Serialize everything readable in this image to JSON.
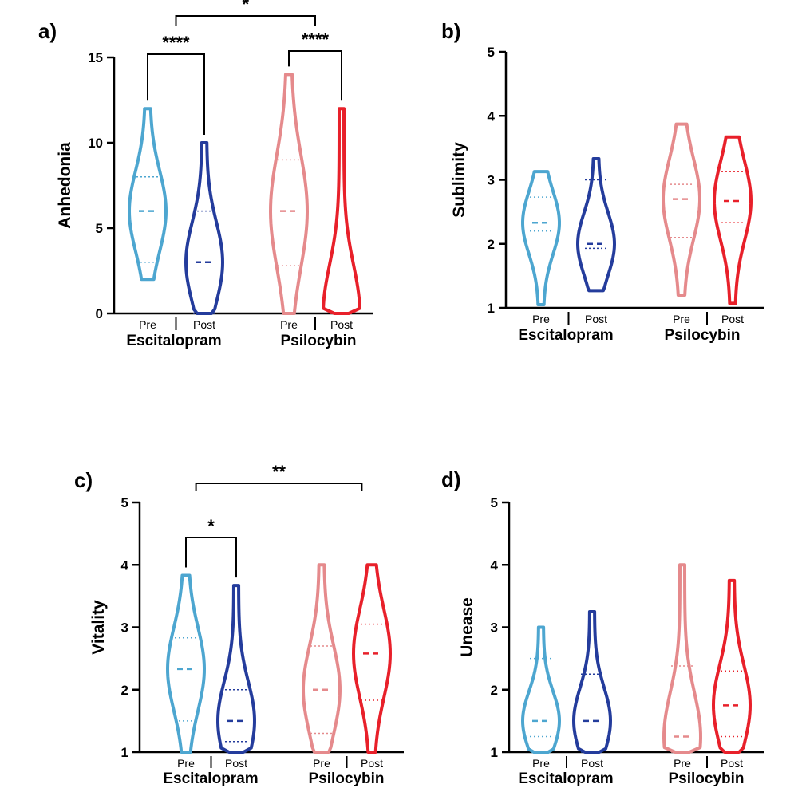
{
  "colors": {
    "escitalopram_pre": "#4da6d0",
    "escitalopram_post": "#243c9c",
    "psilocybin_pre": "#e58a8c",
    "psilocybin_post": "#e8202a"
  },
  "chart_data": [
    {
      "type": "violin",
      "panel_label": "a)",
      "ylabel": "Anhedonia",
      "ylim": [
        0,
        15
      ],
      "yticks": [
        "0",
        "5",
        "10",
        "15"
      ],
      "groups": [
        "Escitalopram",
        "Psilocybin"
      ],
      "conditions": [
        "Pre",
        "Post",
        "Pre",
        "Post"
      ],
      "series": [
        {
          "group": "Escitalopram",
          "condition": "Pre",
          "min": 2,
          "q1": 3,
          "median": 6,
          "q3": 8,
          "max": 12
        },
        {
          "group": "Escitalopram",
          "condition": "Post",
          "min": 0,
          "q1": 0,
          "median": 3,
          "q3": 6,
          "max": 10
        },
        {
          "group": "Psilocybin",
          "condition": "Pre",
          "min": 0,
          "q1": 2.8,
          "median": 6,
          "q3": 9,
          "max": 14
        },
        {
          "group": "Psilocybin",
          "condition": "Post",
          "min": 0,
          "q1": 0,
          "median": 0,
          "q3": 0,
          "max": 12
        }
      ],
      "significance": [
        {
          "from": 0,
          "to": 1,
          "label": "****"
        },
        {
          "from": 2,
          "to": 3,
          "label": "****"
        },
        {
          "from": 0.5,
          "to": 2.5,
          "label": "*"
        }
      ]
    },
    {
      "type": "violin",
      "panel_label": "b)",
      "ylabel": "Sublimity",
      "ylim": [
        1,
        5
      ],
      "yticks": [
        "1",
        "2",
        "3",
        "4",
        "5"
      ],
      "groups": [
        "Escitalopram",
        "Psilocybin"
      ],
      "conditions": [
        "Pre",
        "Post",
        "Pre",
        "Post"
      ],
      "series": [
        {
          "group": "Escitalopram",
          "condition": "Pre",
          "min": 1.05,
          "q1": 2.2,
          "median": 2.33,
          "q3": 2.73,
          "max": 3.13
        },
        {
          "group": "Escitalopram",
          "condition": "Post",
          "min": 1.27,
          "q1": 1.93,
          "median": 2.0,
          "q3": 3.0,
          "max": 3.33
        },
        {
          "group": "Psilocybin",
          "condition": "Pre",
          "min": 1.2,
          "q1": 2.1,
          "median": 2.7,
          "q3": 2.93,
          "max": 3.87
        },
        {
          "group": "Psilocybin",
          "condition": "Post",
          "min": 1.07,
          "q1": 2.33,
          "median": 2.67,
          "q3": 3.13,
          "max": 3.67
        }
      ],
      "significance": []
    },
    {
      "type": "violin",
      "panel_label": "c)",
      "ylabel": "Vitality",
      "ylim": [
        1,
        5
      ],
      "yticks": [
        "1",
        "2",
        "3",
        "4",
        "5"
      ],
      "groups": [
        "Escitalopram",
        "Psilocybin"
      ],
      "conditions": [
        "Pre",
        "Post",
        "Pre",
        "Post"
      ],
      "series": [
        {
          "group": "Escitalopram",
          "condition": "Pre",
          "min": 1.0,
          "q1": 1.5,
          "median": 2.33,
          "q3": 2.83,
          "max": 3.83
        },
        {
          "group": "Escitalopram",
          "condition": "Post",
          "min": 1.0,
          "q1": 1.17,
          "median": 1.5,
          "q3": 2.0,
          "max": 3.67
        },
        {
          "group": "Psilocybin",
          "condition": "Pre",
          "min": 1.0,
          "q1": 1.3,
          "median": 2.0,
          "q3": 2.7,
          "max": 4.0
        },
        {
          "group": "Psilocybin",
          "condition": "Post",
          "min": 1.0,
          "q1": 1.83,
          "median": 2.58,
          "q3": 3.05,
          "max": 4.0
        }
      ],
      "significance": [
        {
          "from": 0,
          "to": 1,
          "label": "*"
        },
        {
          "from": 0.2,
          "to": 2.8,
          "label": "**"
        }
      ]
    },
    {
      "type": "violin",
      "panel_label": "d)",
      "ylabel": "Unease",
      "ylim": [
        1,
        5
      ],
      "yticks": [
        "1",
        "2",
        "3",
        "4",
        "5"
      ],
      "groups": [
        "Escitalopram",
        "Psilocybin"
      ],
      "conditions": [
        "Pre",
        "Post",
        "Pre",
        "Post"
      ],
      "series": [
        {
          "group": "Escitalopram",
          "condition": "Pre",
          "min": 1.0,
          "q1": 1.25,
          "median": 1.5,
          "q3": 2.5,
          "max": 3.0
        },
        {
          "group": "Escitalopram",
          "condition": "Post",
          "min": 1.0,
          "q1": 1.0,
          "median": 1.5,
          "q3": 2.25,
          "max": 3.25
        },
        {
          "group": "Psilocybin",
          "condition": "Pre",
          "min": 1.0,
          "q1": 1.0,
          "median": 1.25,
          "q3": 2.38,
          "max": 4.0
        },
        {
          "group": "Psilocybin",
          "condition": "Post",
          "min": 1.0,
          "q1": 1.25,
          "median": 1.75,
          "q3": 2.3,
          "max": 3.75
        }
      ],
      "significance": []
    }
  ]
}
